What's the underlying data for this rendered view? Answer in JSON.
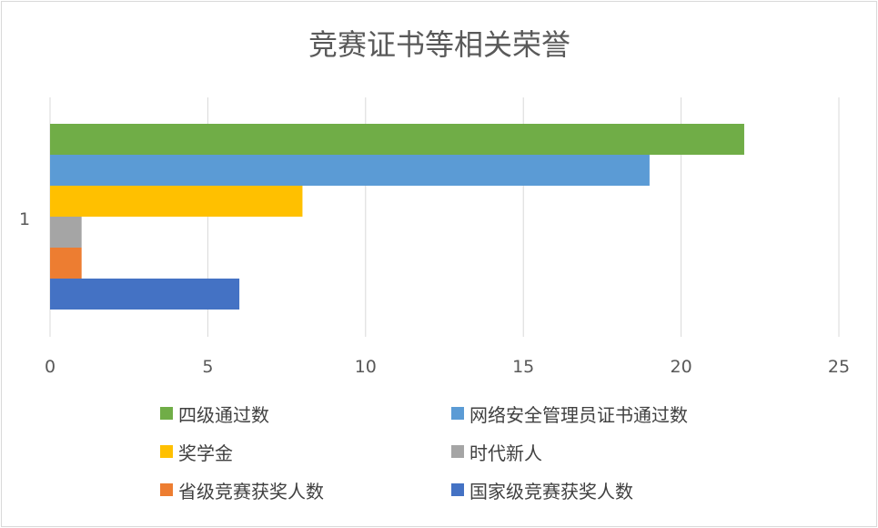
{
  "chart_data": {
    "type": "bar",
    "orientation": "horizontal",
    "title": "竞赛证书等相关荣誉",
    "categories": [
      "1"
    ],
    "xlim": [
      0,
      25
    ],
    "x_ticks": [
      0,
      5,
      10,
      15,
      20,
      25
    ],
    "grid": "vertical",
    "legend_position": "bottom",
    "series": [
      {
        "name": "国家级竞赛获奖人数",
        "values": [
          6
        ],
        "color": "#4472c4"
      },
      {
        "name": "省级竞赛获奖人数",
        "values": [
          1
        ],
        "color": "#ed7d31"
      },
      {
        "name": "时代新人",
        "values": [
          1
        ],
        "color": "#a5a5a5"
      },
      {
        "name": "奖学金",
        "values": [
          8
        ],
        "color": "#ffc000"
      },
      {
        "name": "网络安全管理员证书通过数",
        "values": [
          19
        ],
        "color": "#5b9bd5"
      },
      {
        "name": "四级通过数",
        "values": [
          22
        ],
        "color": "#70ad47"
      }
    ]
  }
}
